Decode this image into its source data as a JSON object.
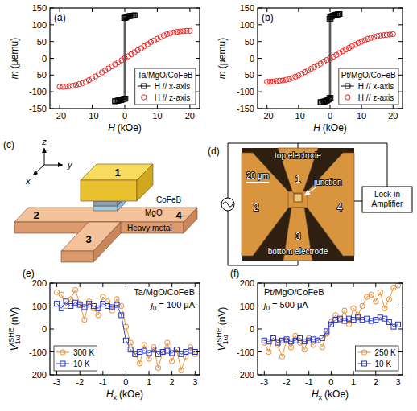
{
  "chart_data": [
    {
      "label": "(a)",
      "type": "scatter",
      "title": "Ta/MgO/CoFeB",
      "xlabel": {
        "text": "H",
        "unit": "(kOe)"
      },
      "ylabel": {
        "text": "m",
        "unit": "(μemu)"
      },
      "xlim": [
        -23,
        23
      ],
      "xticks": [
        -20,
        -10,
        0,
        10,
        20
      ],
      "ylim": [
        -150,
        150
      ],
      "yticks": [
        -150,
        -100,
        -50,
        0,
        50,
        100,
        150
      ],
      "legend": "lower right",
      "series": [
        {
          "name": "H // x-axis",
          "color": "#000000",
          "marker": "square",
          "line_style": "solid",
          "x": [
            3,
            2.5,
            2,
            1.5,
            1,
            0.5,
            0,
            -0.2,
            -0.2,
            -0.5,
            -1,
            -1.5,
            -2,
            -2.5,
            -3,
            -3,
            -2.5,
            -2,
            -1.5,
            -1,
            -0.5,
            0,
            0.2,
            0.2,
            0.5,
            1,
            1.5,
            2,
            2.5,
            3
          ],
          "values": [
            128,
            127,
            127,
            126,
            125,
            123,
            121,
            120,
            -120,
            -122,
            -124,
            -125,
            -126,
            -127,
            -128,
            -128,
            -127,
            -126,
            -125,
            -124,
            -122,
            -121,
            -120,
            120,
            123,
            125,
            126,
            127,
            127,
            128
          ]
        },
        {
          "name": "H // z-axis",
          "color": "#e8201c",
          "marker": "circle",
          "line_style": "none",
          "x": [
            -20,
            -19,
            -18,
            -17,
            -16,
            -15,
            -14,
            -13,
            -12,
            -11,
            -10,
            -9,
            -8,
            -7,
            -6,
            -5,
            -4,
            -3,
            -2,
            -1,
            0,
            1,
            2,
            3,
            4,
            5,
            6,
            7,
            8,
            9,
            10,
            11,
            12,
            13,
            14,
            15,
            16,
            17,
            18,
            19,
            20
          ],
          "values": [
            -85,
            -85,
            -84,
            -83,
            -82,
            -80,
            -77,
            -74,
            -70,
            -65,
            -60,
            -54,
            -48,
            -42,
            -36,
            -30,
            -24,
            -18,
            -12,
            -6,
            0,
            6,
            12,
            18,
            24,
            30,
            36,
            42,
            48,
            53,
            58,
            63,
            68,
            72,
            75,
            77,
            79,
            80,
            81,
            82,
            82
          ]
        }
      ]
    },
    {
      "label": "(b)",
      "type": "scatter",
      "title": "Pt/MgO/CoFeB",
      "xlabel": {
        "text": "H",
        "unit": "(kOe)"
      },
      "ylabel": {
        "text": "m",
        "unit": "(μemu)"
      },
      "xlim": [
        -23,
        23
      ],
      "xticks": [
        -20,
        -10,
        0,
        10,
        20
      ],
      "ylim": [
        -150,
        150
      ],
      "yticks": [
        -150,
        -100,
        -50,
        0,
        50,
        100,
        150
      ],
      "legend": "lower right",
      "series": [
        {
          "name": "H // x-axis",
          "color": "#000000",
          "marker": "square",
          "line_style": "solid",
          "x": [
            3,
            2.5,
            2,
            1.5,
            1,
            0.5,
            0,
            -0.2,
            -0.2,
            -0.5,
            -1,
            -1.5,
            -2,
            -2.5,
            -3,
            -3,
            -2.5,
            -2,
            -1.5,
            -1,
            -0.5,
            0,
            0.2,
            0.2,
            0.5,
            1,
            1.5,
            2,
            2.5,
            3
          ],
          "values": [
            132,
            131,
            130,
            129,
            128,
            126,
            122,
            118,
            -118,
            -123,
            -126,
            -128,
            -129,
            -130,
            -131,
            -131,
            -130,
            -129,
            -128,
            -126,
            -123,
            -120,
            -118,
            118,
            124,
            127,
            129,
            130,
            131,
            132
          ]
        },
        {
          "name": "H // z-axis",
          "color": "#e8201c",
          "marker": "circle",
          "line_style": "none",
          "x": [
            -20,
            -19,
            -18,
            -17,
            -16,
            -15,
            -14,
            -13,
            -12,
            -11,
            -10,
            -9,
            -8,
            -7,
            -6,
            -5,
            -4,
            -3,
            -2,
            -1,
            0,
            1,
            2,
            3,
            4,
            5,
            6,
            7,
            8,
            9,
            10,
            11,
            12,
            13,
            14,
            15,
            16,
            17,
            18,
            19,
            20
          ],
          "values": [
            -70,
            -70,
            -69,
            -68,
            -67,
            -66,
            -64,
            -62,
            -59,
            -55,
            -51,
            -46,
            -41,
            -36,
            -31,
            -26,
            -21,
            -16,
            -10,
            -5,
            0,
            5,
            10,
            16,
            21,
            26,
            31,
            36,
            41,
            46,
            50,
            54,
            58,
            61,
            64,
            66,
            68,
            69,
            70,
            71,
            72
          ]
        }
      ]
    },
    {
      "label": "(e)",
      "type": "scatter",
      "title": "Ta/MgO/CoFeB",
      "annotations": [
        {
          "text": "j",
          "sub": "0",
          "unit": "= 100 μA"
        }
      ],
      "xlabel": {
        "text": "H",
        "sub": "x",
        "unit": "(kOe)"
      },
      "ylabel": {
        "text": "V",
        "sub": "1ω",
        "sup": "ISHE",
        "unit": "(nV)"
      },
      "xlim": [
        -3.3,
        3.2
      ],
      "xticks": [
        -3,
        -2,
        -1,
        0,
        1,
        2,
        3
      ],
      "ylim": [
        -200,
        200
      ],
      "yticks": [
        -200,
        -100,
        0,
        100,
        200
      ],
      "legend": "lower left",
      "series": [
        {
          "name": "300 K",
          "color": "#e8892b",
          "marker": "circle",
          "line_style": "solid",
          "x": [
            -3,
            -2.8,
            -2.6,
            -2.4,
            -2.2,
            -2,
            -1.8,
            -1.6,
            -1.4,
            -1.2,
            -1,
            -0.8,
            -0.6,
            -0.4,
            -0.2,
            0,
            0.2,
            0.4,
            0.6,
            0.8,
            1,
            1.2,
            1.4,
            1.6,
            1.8,
            2,
            2.2,
            2.4,
            2.6,
            2.8,
            3
          ],
          "values": [
            160,
            150,
            100,
            130,
            170,
            110,
            40,
            120,
            90,
            60,
            140,
            120,
            80,
            130,
            100,
            10,
            -60,
            -110,
            -150,
            -70,
            -130,
            -80,
            -170,
            -100,
            -60,
            -140,
            -90,
            -180,
            -120,
            -80,
            -110
          ]
        },
        {
          "name": "10 K",
          "color": "#2233c4",
          "marker": "square",
          "line_style": "solid",
          "x": [
            -3,
            -2.8,
            -2.6,
            -2.4,
            -2.2,
            -2,
            -1.8,
            -1.6,
            -1.4,
            -1.2,
            -1,
            -0.8,
            -0.6,
            -0.4,
            -0.2,
            0,
            0.2,
            0.4,
            0.6,
            0.8,
            1,
            1.2,
            1.4,
            1.6,
            1.8,
            2,
            2.2,
            2.4,
            2.6,
            2.8,
            3
          ],
          "values": [
            110,
            90,
            120,
            100,
            115,
            105,
            95,
            110,
            100,
            90,
            110,
            100,
            95,
            105,
            60,
            -50,
            -90,
            -110,
            -100,
            -95,
            -105,
            -90,
            -110,
            -100,
            -95,
            -105,
            -90,
            -110,
            -100,
            -95,
            -100
          ]
        }
      ]
    },
    {
      "label": "(f)",
      "type": "scatter",
      "title": "Pt/MgO/CoFeB",
      "annotations": [
        {
          "text": "j",
          "sub": "0",
          "unit": "= 500 μA"
        }
      ],
      "xlabel": {
        "text": "H",
        "sub": "x",
        "unit": "(kOe)"
      },
      "ylabel": {
        "text": "V",
        "sub": "1ω",
        "sup": "ISHE",
        "unit": "(nV)"
      },
      "xlim": [
        -3.3,
        3.2
      ],
      "xticks": [
        -3,
        -2,
        -1,
        0,
        1,
        2,
        3
      ],
      "ylim": [
        -200,
        200
      ],
      "yticks": [
        -200,
        -100,
        0,
        100,
        200
      ],
      "legend": "lower right",
      "series": [
        {
          "name": "250 K",
          "color": "#e8892b",
          "marker": "circle",
          "line_style": "solid",
          "x": [
            -3,
            -2.8,
            -2.6,
            -2.4,
            -2.2,
            -2,
            -1.8,
            -1.6,
            -1.4,
            -1.2,
            -1,
            -0.8,
            -0.6,
            -0.4,
            -0.2,
            0,
            0.2,
            0.4,
            0.6,
            0.8,
            1,
            1.2,
            1.4,
            1.6,
            1.8,
            2,
            2.2,
            2.4,
            2.6,
            2.8,
            3
          ],
          "values": [
            -60,
            -100,
            -40,
            -70,
            -120,
            -50,
            -80,
            -30,
            -60,
            -90,
            -40,
            -70,
            -50,
            -80,
            -20,
            30,
            60,
            40,
            80,
            20,
            90,
            60,
            100,
            140,
            150,
            120,
            160,
            90,
            130,
            180,
            190
          ]
        },
        {
          "name": "10 K",
          "color": "#2233c4",
          "marker": "square",
          "line_style": "solid",
          "x": [
            -3,
            -2.8,
            -2.6,
            -2.4,
            -2.2,
            -2,
            -1.8,
            -1.6,
            -1.4,
            -1.2,
            -1,
            -0.8,
            -0.6,
            -0.4,
            -0.2,
            0,
            0.2,
            0.4,
            0.6,
            0.8,
            1,
            1.2,
            1.4,
            1.6,
            1.8,
            2,
            2.2,
            2.4,
            2.6,
            2.8,
            3
          ],
          "values": [
            -50,
            -55,
            -40,
            -60,
            -50,
            -45,
            -55,
            -50,
            -40,
            -55,
            -50,
            -45,
            -50,
            -40,
            -10,
            20,
            40,
            45,
            35,
            45,
            40,
            50,
            40,
            45,
            35,
            40,
            50,
            45,
            30,
            10,
            20
          ]
        }
      ]
    }
  ],
  "diagrams": [
    {
      "label": "(c)",
      "axes": [
        "z",
        "y",
        "x"
      ],
      "terminals": [
        "1",
        "2",
        "3",
        "4"
      ],
      "layers": [
        "CoFeB",
        "MgO",
        "Heavy metal"
      ]
    },
    {
      "label": "(d)",
      "scale_bar": "20 μm",
      "labels": [
        "top electrode",
        "junction",
        "bottom electrode"
      ],
      "terminals": [
        "1",
        "2",
        "3",
        "4"
      ],
      "instrument": "Lock-in Amplifier"
    }
  ]
}
